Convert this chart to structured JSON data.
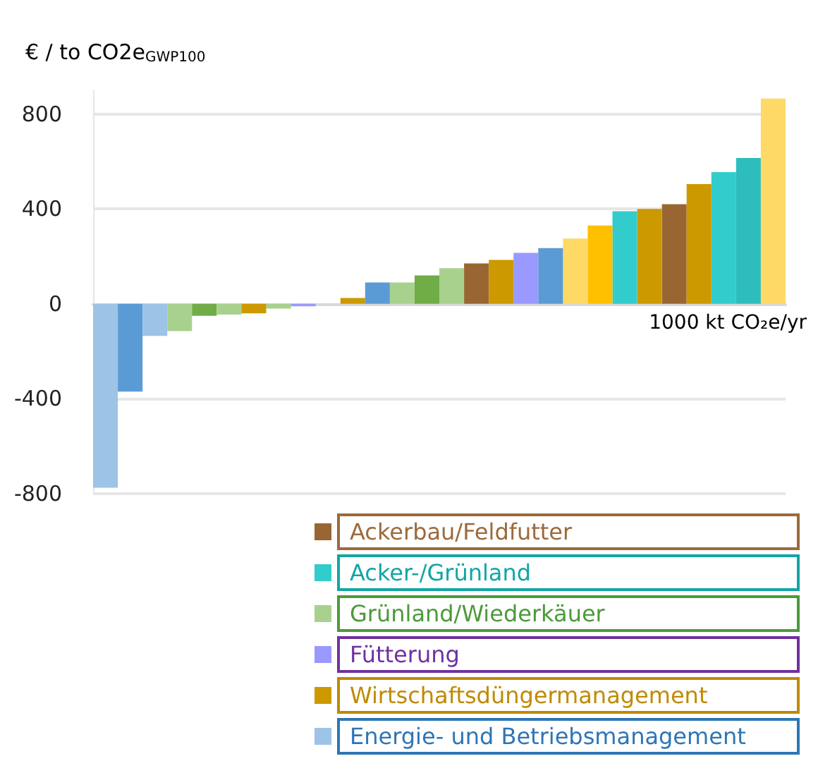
{
  "chart_data": {
    "type": "bar",
    "annotations": [
      "1000 kt CO₂e/yr"
    ],
    "categories": [
      null,
      null,
      null,
      null,
      null,
      null,
      null,
      null,
      null,
      null,
      null,
      null,
      null,
      null,
      null,
      null,
      null,
      null,
      null,
      null,
      null,
      null,
      null,
      null,
      null,
      null,
      null,
      null
    ],
    "ylabel": "€ / to CO2e$_{GWP100}$",
    "series": [
      {
        "name": "Ackerbau/Feldfutter",
        "color": "#9c6a3c",
        "values": [
          null,
          null,
          null,
          null,
          null,
          null,
          null,
          null,
          null,
          null,
          null,
          null,
          null,
          null,
          null,
          170,
          null,
          null,
          null,
          null,
          null,
          null,
          null,
          420,
          null,
          null,
          null,
          null
        ],
        "colors": [
          null,
          null,
          null,
          null,
          null,
          null,
          null,
          null,
          null,
          null,
          null,
          null,
          null,
          null,
          null,
          "#996633",
          null,
          null,
          null,
          null,
          null,
          null,
          null,
          "#996633",
          null,
          null,
          null,
          null
        ]
      },
      {
        "name": "Acker-/Grünland",
        "color": "#12a5a5",
        "values": [
          null,
          null,
          null,
          null,
          null,
          null,
          null,
          null,
          null,
          null,
          null,
          null,
          null,
          null,
          null,
          null,
          null,
          null,
          null,
          null,
          null,
          390,
          null,
          null,
          null,
          555,
          615,
          null
        ],
        "colors": [
          null,
          null,
          null,
          null,
          null,
          null,
          null,
          null,
          null,
          null,
          null,
          null,
          null,
          null,
          null,
          null,
          null,
          null,
          null,
          null,
          null,
          "#33cccc",
          null,
          null,
          null,
          "#33cccc",
          "#2ebdbd",
          null
        ]
      },
      {
        "name": "Grünland/Wiederkäuer",
        "color": "#4c9a3a",
        "values": [
          null,
          null,
          null,
          -115,
          -50,
          -45,
          null,
          -20,
          null,
          null,
          null,
          null,
          90,
          120,
          150,
          null,
          null,
          null,
          null,
          null,
          null,
          null,
          null,
          null,
          null,
          null,
          null,
          null
        ],
        "colors": [
          null,
          null,
          null,
          "#a9d18e",
          "#70ad47",
          "#a9d18e",
          null,
          "#a9d18e",
          null,
          null,
          null,
          null,
          "#a9d18e",
          "#70ad47",
          "#a9d18e",
          null,
          null,
          null,
          null,
          null,
          null,
          null,
          null,
          null,
          null,
          null,
          null,
          null
        ]
      },
      {
        "name": "Fütterung",
        "color": "#7030a0",
        "values": [
          null,
          null,
          null,
          null,
          null,
          null,
          null,
          null,
          -10,
          null,
          null,
          null,
          null,
          null,
          null,
          null,
          null,
          215,
          null,
          null,
          null,
          null,
          null,
          null,
          null,
          null,
          null,
          null
        ],
        "colors": [
          null,
          null,
          null,
          null,
          null,
          null,
          null,
          null,
          "#9999ff",
          null,
          null,
          null,
          null,
          null,
          null,
          null,
          null,
          "#9999ff",
          null,
          null,
          null,
          null,
          null,
          null,
          null,
          null,
          null,
          null
        ]
      },
      {
        "name": "Wirtschaftsdüngermanagement",
        "color": "#c08a00",
        "values": [
          null,
          null,
          null,
          null,
          null,
          null,
          -40,
          null,
          null,
          null,
          25,
          null,
          null,
          null,
          null,
          null,
          185,
          null,
          null,
          275,
          330,
          null,
          400,
          null,
          505,
          null,
          null,
          865
        ],
        "colors": [
          null,
          null,
          null,
          null,
          null,
          null,
          "#cc9900",
          null,
          null,
          null,
          "#cc9900",
          null,
          null,
          null,
          null,
          null,
          "#cc9900",
          null,
          null,
          "#ffd966",
          "#ffc000",
          null,
          "#cc9900",
          null,
          "#cc9900",
          null,
          null,
          "#ffd966"
        ]
      },
      {
        "name": "Energie- und Betriebsmanagement",
        "color": "#2e75b6",
        "values": [
          -775,
          -370,
          -135,
          null,
          null,
          null,
          null,
          null,
          null,
          null,
          null,
          90,
          null,
          null,
          null,
          null,
          null,
          null,
          235,
          null,
          null,
          null,
          null,
          null,
          null,
          null,
          null,
          null
        ],
        "colors": [
          "#9dc3e6",
          "#5b9bd5",
          "#9dc3e6",
          null,
          null,
          null,
          null,
          null,
          null,
          null,
          null,
          "#5b9bd5",
          null,
          null,
          null,
          null,
          null,
          null,
          "#5b9bd5",
          null,
          null,
          null,
          null,
          null,
          null,
          null,
          null,
          null
        ]
      }
    ],
    "ylim": [
      -800,
      900
    ],
    "yticks": [
      -800,
      -400,
      0,
      400,
      800
    ],
    "grid": "y",
    "legend": "bottom right"
  }
}
